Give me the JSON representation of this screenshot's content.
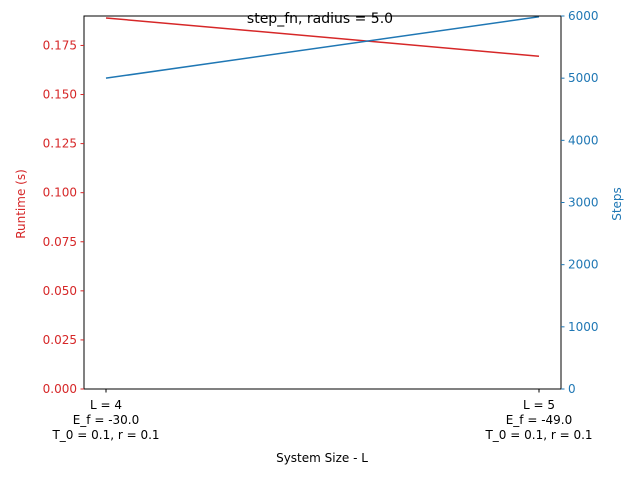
{
  "chart_data": {
    "type": "line",
    "title": "step_fn, radius = 5.0",
    "xlabel": "System Size - L",
    "categories": [
      [
        "L = 4",
        "E_f = -30.0",
        "T_0 = 0.1, r = 0.1"
      ],
      [
        "L = 5",
        "E_f = -49.0",
        "T_0 = 0.1, r = 0.1"
      ]
    ],
    "left_axis": {
      "label": "Runtime (s)",
      "color": "#d62728",
      "ylim": [
        0,
        0.19
      ],
      "ticks": [
        0.0,
        0.025,
        0.05,
        0.075,
        0.1,
        0.125,
        0.15,
        0.175
      ],
      "tick_labels": [
        "0.000",
        "0.025",
        "0.050",
        "0.075",
        "0.100",
        "0.125",
        "0.150",
        "0.175"
      ]
    },
    "right_axis": {
      "label": "Steps",
      "color": "#1f77b4",
      "ylim": [
        0,
        6000
      ],
      "ticks": [
        0,
        1000,
        2000,
        3000,
        4000,
        5000,
        6000
      ],
      "tick_labels": [
        "0",
        "1000",
        "2000",
        "3000",
        "4000",
        "5000",
        "6000"
      ]
    },
    "series": [
      {
        "axis": "left",
        "color": "#d62728",
        "values": [
          0.189,
          0.1695
        ]
      },
      {
        "axis": "right",
        "color": "#1f77b4",
        "values": [
          5000,
          5988
        ]
      }
    ],
    "grid": false,
    "legend": false
  }
}
